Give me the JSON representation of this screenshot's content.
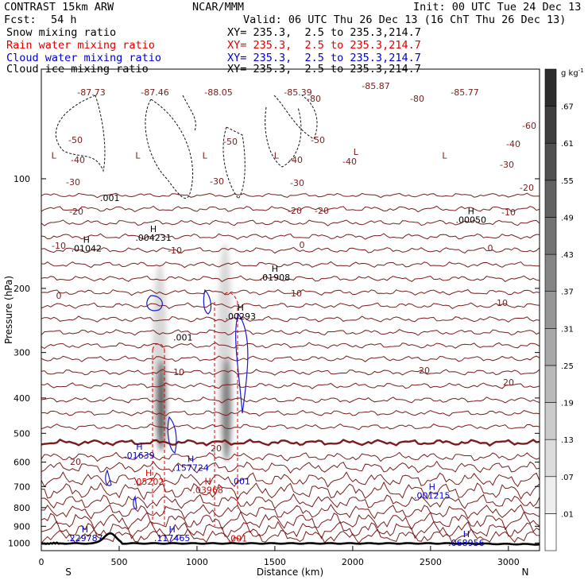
{
  "header": {
    "model": "CONTRAST 15km ARW",
    "fcst_label": "Fcst:",
    "fcst_value": "54 h",
    "center": "NCAR/MMM",
    "init": "Init: 00 UTC Tue 24 Dec 13",
    "valid": "Valid: 06 UTC Thu 26 Dec 13 (16 ChT Thu 26 Dec 13)",
    "fields": [
      {
        "name": "Snow mixing ratio",
        "xy": "XY= 235.3,  2.5 to 235.3,214.7",
        "color": "#000000"
      },
      {
        "name": "Rain water mixing ratio",
        "xy": "XY= 235.3,  2.5 to 235.3,214.7",
        "color": "#dd0000"
      },
      {
        "name": "Cloud water mixing ratio",
        "xy": "XY= 235.3,  2.5 to 235.3,214.7",
        "color": "#0000cc"
      },
      {
        "name": "Cloud ice mixing ratio",
        "xy": "XY= 235.3,  2.5 to 235.3,214.7",
        "color": "#000000"
      }
    ]
  },
  "chart_data": {
    "type": "heatmap",
    "xlabel": "Distance (km)",
    "ylabel": "Pressure (hPa)",
    "xlim": [
      0,
      3200
    ],
    "ylim": [
      1050,
      50
    ],
    "y_scale": "log",
    "x_ticks": [
      "0",
      "500",
      "1000",
      "1500",
      "2000",
      "2500",
      "3000"
    ],
    "y_ticks": [
      "100",
      "200",
      "300",
      "400",
      "500",
      "600",
      "700",
      "800",
      "900",
      "1000"
    ],
    "end_labels": {
      "left": "S",
      "right": "N"
    },
    "colorbar": {
      "unit": "g kg",
      "unit_exp": "-1",
      "levels": [
        ".01",
        ".07",
        ".13",
        ".19",
        ".25",
        ".31",
        ".37",
        ".43",
        ".49",
        ".55",
        ".61",
        ".67"
      ]
    },
    "temperature_contour_labels": [
      "-87.73",
      "-87.46",
      "-88.05",
      "-85.39",
      "-85.87",
      "-85.77",
      "-80",
      "-80",
      "-60",
      "-50",
      "-50",
      "-50",
      "-40",
      "-40",
      "-40",
      "-40",
      "-30",
      "-30",
      "-30",
      "-30",
      "-20",
      "-20",
      "-20",
      "-20",
      "-10",
      "-10",
      "-10",
      "0",
      "0",
      "0",
      "10",
      "10",
      "10",
      "20",
      "20",
      "20",
      "20"
    ],
    "extrema": [
      {
        "kind": "L",
        "x": 80,
        "p": 88
      },
      {
        "kind": "L",
        "x": 620,
        "p": 88
      },
      {
        "kind": "L",
        "x": 1050,
        "p": 88
      },
      {
        "kind": "L",
        "x": 1510,
        "p": 88
      },
      {
        "kind": "L",
        "x": 2020,
        "p": 86
      },
      {
        "kind": "L",
        "x": 2590,
        "p": 88
      },
      {
        "kind": "H",
        "label": ".01042",
        "x": 290,
        "p": 150,
        "color": "#000000"
      },
      {
        "kind": "H",
        "label": ".004231",
        "x": 720,
        "p": 140,
        "color": "#000000"
      },
      {
        "kind": "H",
        "label": ".01908",
        "x": 1500,
        "p": 180,
        "color": "#000000"
      },
      {
        "kind": "H",
        "label": ".00293",
        "x": 1280,
        "p": 230,
        "color": "#000000"
      },
      {
        "kind": "H",
        "label": ".00050",
        "x": 2760,
        "p": 125,
        "color": "#000000"
      },
      {
        "kind": "H",
        "label": ".01639",
        "x": 630,
        "p": 555,
        "color": "#0000cc"
      },
      {
        "kind": "H",
        "label": ".157724",
        "x": 960,
        "p": 600,
        "color": "#0000cc"
      },
      {
        "kind": "H",
        "label": ".001215",
        "x": 2510,
        "p": 715,
        "color": "#0000cc"
      },
      {
        "kind": "H",
        "label": ".229787",
        "x": 280,
        "p": 935,
        "color": "#0000cc"
      },
      {
        "kind": "H",
        "label": ".117465",
        "x": 840,
        "p": 935,
        "color": "#0000cc"
      },
      {
        "kind": "H",
        "label": ".068956",
        "x": 2730,
        "p": 965,
        "color": "#0000cc"
      },
      {
        "kind": "H",
        "label": ".05202",
        "x": 690,
        "p": 655,
        "color": "#dd0000"
      },
      {
        "kind": "H",
        "label": ".03968",
        "x": 1070,
        "p": 690,
        "color": "#dd0000"
      }
    ],
    "point_labels": [
      {
        "label": ".001",
        "x": 440,
        "p": 115,
        "color": "#000000"
      },
      {
        "label": ".001",
        "x": 910,
        "p": 278,
        "color": "#000000"
      },
      {
        "label": ".001",
        "x": 1280,
        "p": 690,
        "color": "#0000cc"
      },
      {
        "label": ".001",
        "x": 1260,
        "p": 990,
        "color": "#dd0000"
      }
    ],
    "snow_plumes": [
      {
        "x": 760,
        "p_top": 170,
        "p_bottom": 540,
        "peak_p": 420,
        "peak": 0.6
      },
      {
        "x": 1180,
        "p_top": 150,
        "p_bottom": 560,
        "peak_p": 430,
        "peak": 0.5
      }
    ]
  }
}
